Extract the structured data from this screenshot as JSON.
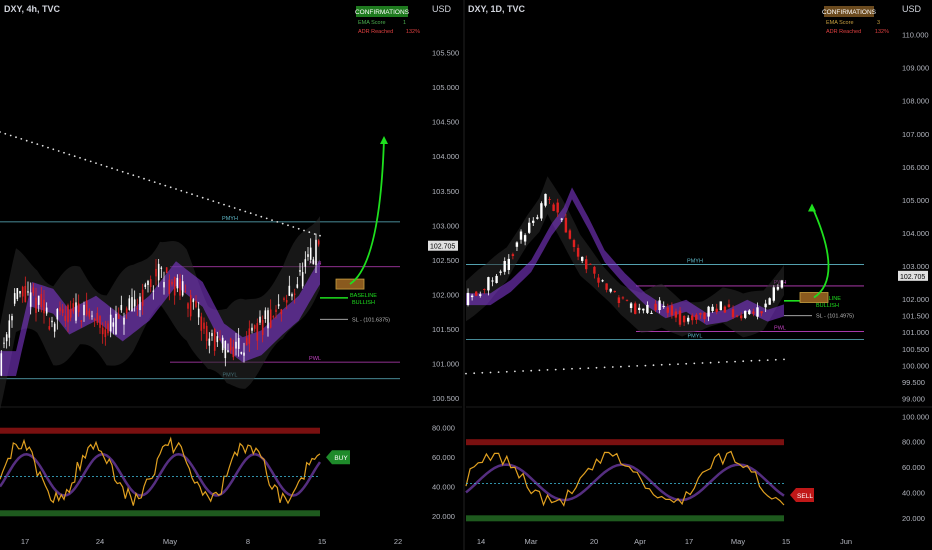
{
  "chart_data": [
    {
      "type": "candlestick",
      "title": "DXY, 4h, TVC",
      "currency": "USD",
      "ylim": [
        100.4,
        106.0
      ],
      "y_ticks": [
        "105.500",
        "105.000",
        "104.500",
        "104.000",
        "103.500",
        "103.000",
        "102.500",
        "102.000",
        "101.500",
        "101.000",
        "100.500"
      ],
      "x_ticks": [
        "17",
        "24",
        "May",
        "8",
        "15",
        "22"
      ],
      "last_price": "102.705",
      "confirmations": {
        "title": "CONFIRMATIONS",
        "rows": [
          {
            "label": "EMA Score",
            "value": "1"
          },
          {
            "label": "ADR Reached",
            "value": "132%"
          }
        ]
      },
      "levels": [
        {
          "label": "PMYH",
          "value": 103.05
        },
        {
          "label": "PWH",
          "value": 102.4
        },
        {
          "label": "BASELINE BULLISH",
          "value": 101.95
        },
        {
          "label": "SL - (101.6375)",
          "value": 101.64
        },
        {
          "label": "PWL",
          "value": 101.02
        },
        {
          "label": "PMYL",
          "value": 100.78
        }
      ],
      "signal": "BUY",
      "oscillator": {
        "y_ticks": [
          "80.000",
          "60.000",
          "40.000",
          "20.000"
        ],
        "ylim": [
          12,
          92
        ]
      },
      "colors": {
        "up": "#ffffff",
        "down": "#e02020",
        "purple": "#8a3de0",
        "signal": "#1e8a2a",
        "level_cyan": "#5fb8c8",
        "level_magenta": "#c040c0"
      }
    },
    {
      "type": "candlestick",
      "title": "DXY, 1D, TVC",
      "currency": "USD",
      "ylim": [
        98.8,
        110.5
      ],
      "y_ticks": [
        "110.000",
        "109.000",
        "108.000",
        "107.000",
        "106.000",
        "105.000",
        "104.000",
        "103.000",
        "102.000",
        "101.000",
        "100.000",
        "99.000"
      ],
      "extra_ticks": [
        "103.000",
        "102.705",
        "102.000",
        "101.500",
        "101.000",
        "100.500",
        "99.500"
      ],
      "x_ticks": [
        "14",
        "Mar",
        "20",
        "Apr",
        "17",
        "May",
        "15",
        "Jun"
      ],
      "last_price": "102.705",
      "confirmations": {
        "title": "CONFIRMATIONS",
        "rows": [
          {
            "label": "EMA Score",
            "value": "3"
          },
          {
            "label": "ADR Reached",
            "value": "132%"
          }
        ]
      },
      "levels": [
        {
          "label": "PMYH",
          "value": 103.05
        },
        {
          "label": "PWH",
          "value": 102.4
        },
        {
          "label": "BASELINE BULLISH",
          "value": 101.95
        },
        {
          "label": "SL - (101.4975)",
          "value": 101.5
        },
        {
          "label": "PWL",
          "value": 101.02
        },
        {
          "label": "PMYL",
          "value": 100.78
        }
      ],
      "signal": "SELL",
      "oscillator": {
        "y_ticks": [
          "100.000",
          "80.000",
          "60.000",
          "40.000",
          "20.000"
        ],
        "ylim": [
          12,
          105
        ]
      },
      "colors": {
        "up": "#ffffff",
        "down": "#e02020",
        "purple": "#8a3de0",
        "signal": "#c01818",
        "level_cyan": "#5fb8c8",
        "level_magenta": "#c040c0"
      }
    }
  ]
}
